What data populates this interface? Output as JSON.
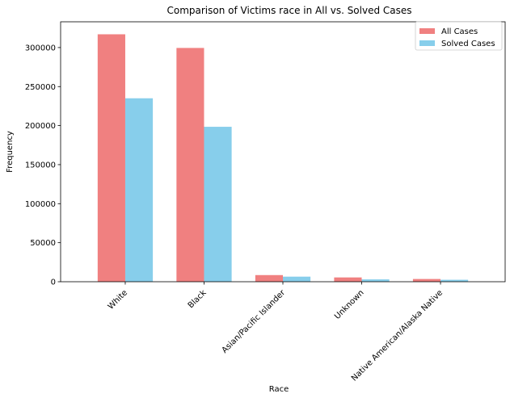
{
  "chart_data": {
    "type": "bar",
    "title": "Comparison of Victims race in All vs. Solved Cases",
    "xlabel": "Race",
    "ylabel": "Frequency",
    "categories": [
      "White",
      "Black",
      "Asian/Pacific Islander",
      "Unknown",
      "Native American/Alaska Native"
    ],
    "series": [
      {
        "name": "All Cases",
        "values": [
          317000,
          299500,
          8500,
          5500,
          3500
        ],
        "color": "#f08080"
      },
      {
        "name": "Solved Cases",
        "values": [
          235000,
          198500,
          6500,
          3000,
          2500
        ],
        "color": "#87ceeb"
      }
    ],
    "ylim": [
      0,
      333000
    ],
    "yticks": [
      0,
      50000,
      100000,
      150000,
      200000,
      250000,
      300000
    ],
    "legend_position": "top-right",
    "grid": false
  }
}
